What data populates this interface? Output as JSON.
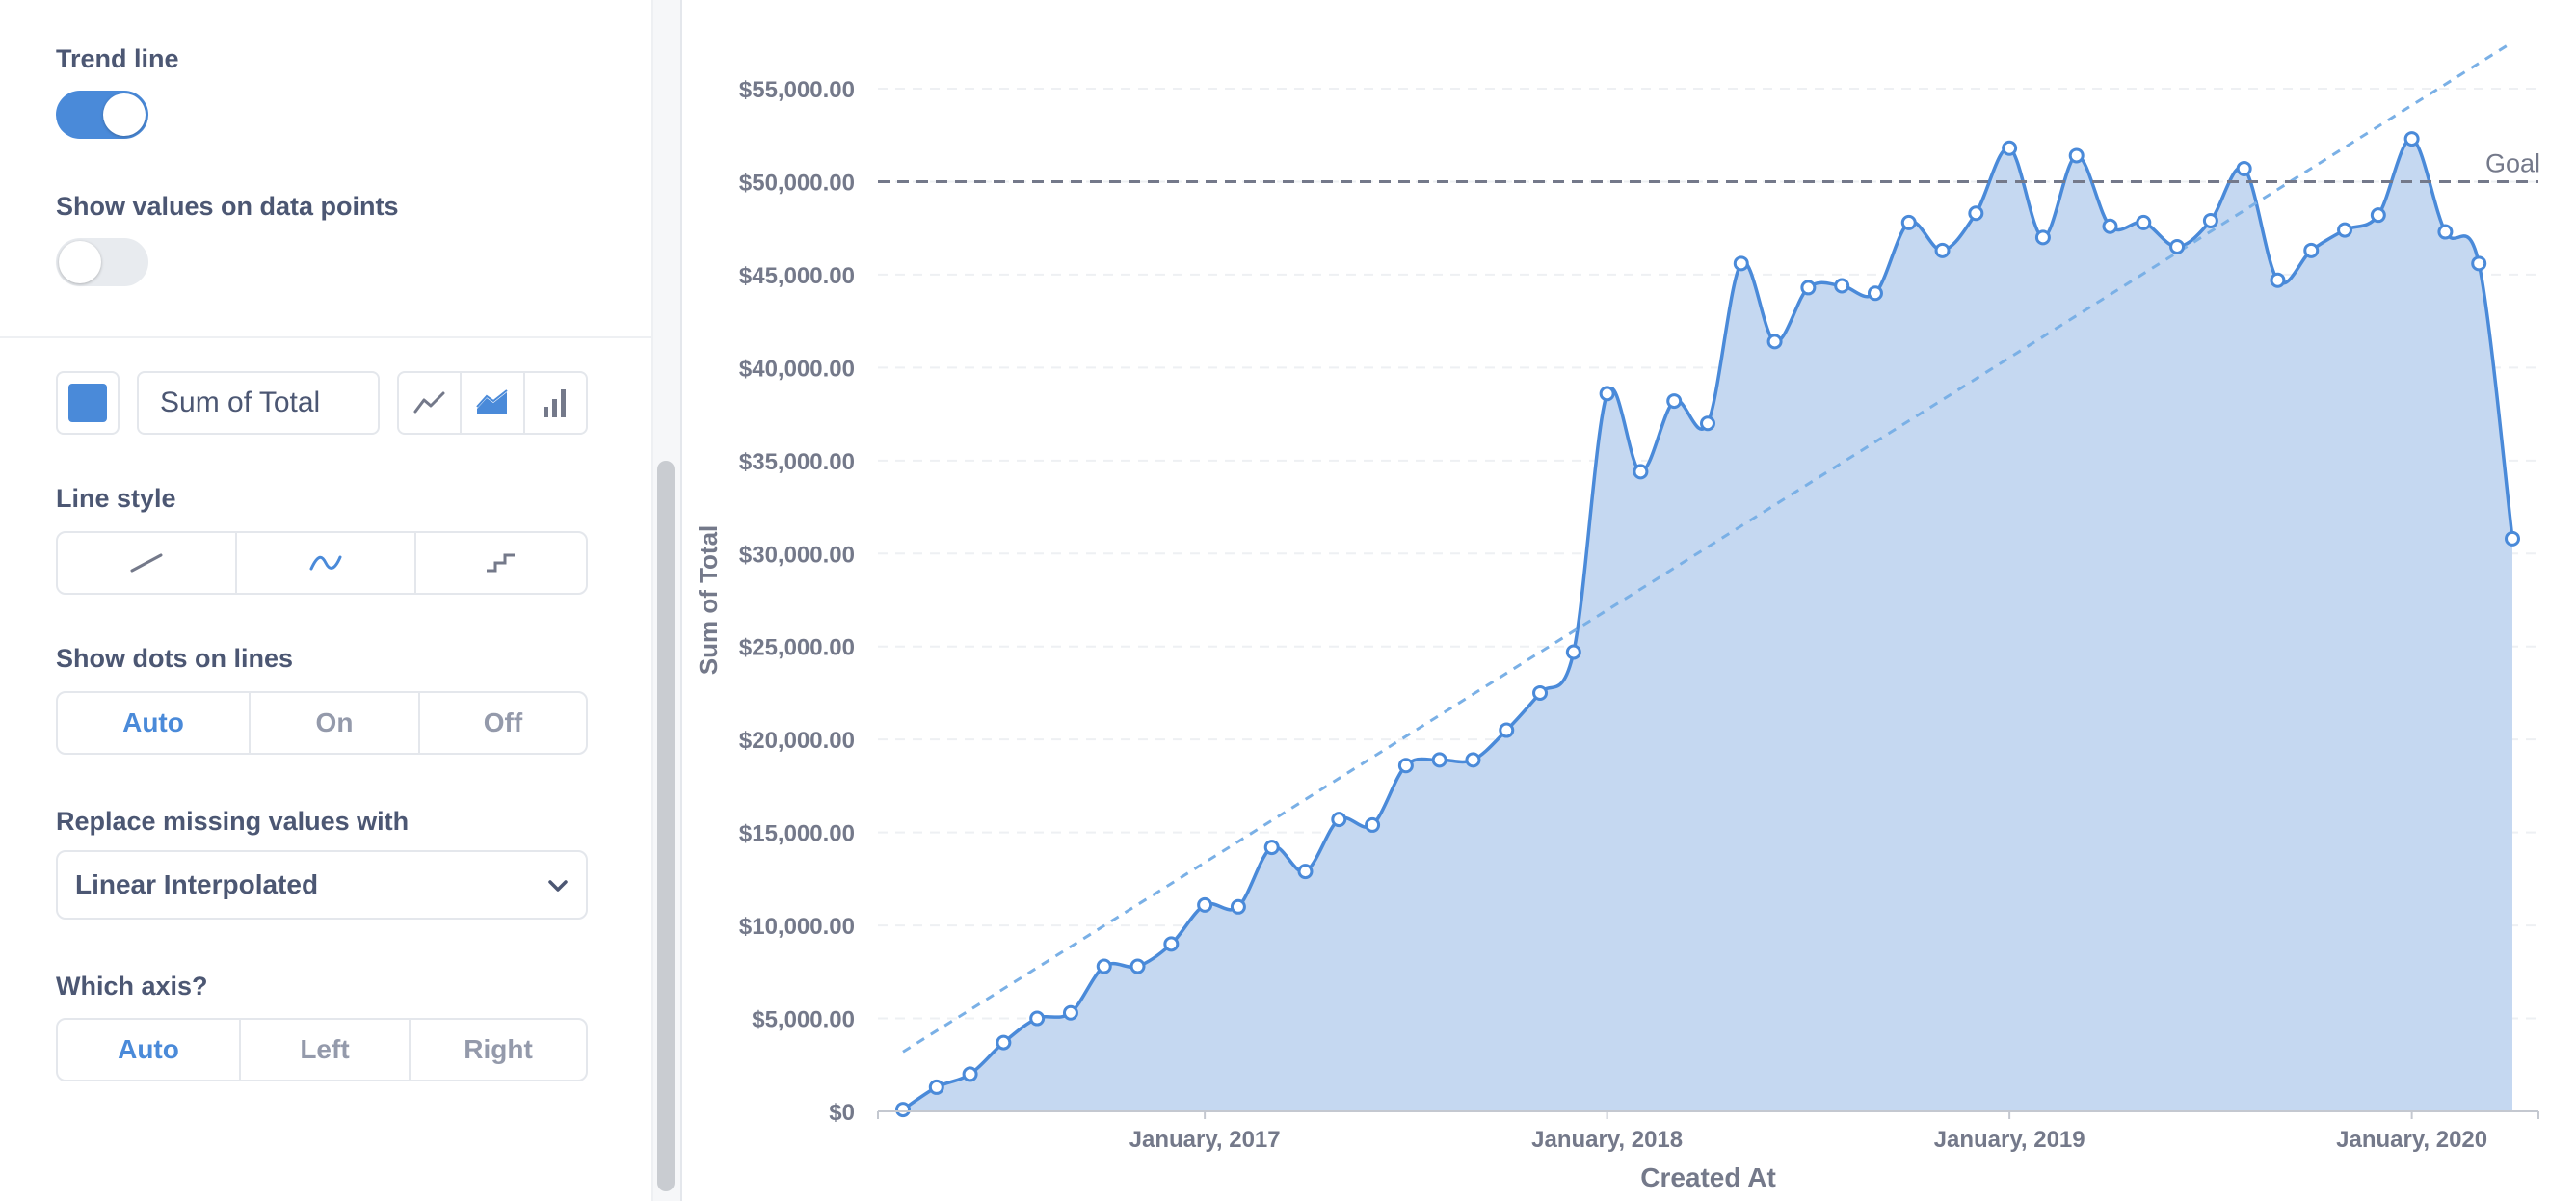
{
  "sidebar": {
    "trend_line": {
      "label": "Trend line",
      "enabled": true
    },
    "show_values": {
      "label": "Show values on data points",
      "enabled": false
    },
    "series": {
      "color": "#4a8ad9",
      "name": "Sum of Total",
      "chart_type_icons": [
        "line-chart-icon",
        "area-chart-icon",
        "bar-chart-icon"
      ],
      "selected_chart_type": "area"
    },
    "line_style": {
      "label": "Line style",
      "options": [
        "linear-line-icon",
        "curved-line-icon",
        "step-line-icon"
      ],
      "selected": "curved"
    },
    "show_dots": {
      "label": "Show dots on lines",
      "options": [
        "Auto",
        "On",
        "Off"
      ],
      "selected": "Auto"
    },
    "missing_values": {
      "label": "Replace missing values with",
      "value": "Linear Interpolated"
    },
    "axis": {
      "label": "Which axis?",
      "options": [
        "Auto",
        "Left",
        "Right"
      ],
      "selected": "Auto"
    }
  },
  "colors": {
    "accent": "#4a8ad9",
    "area_fill": "#c5d8f1",
    "trend": "#7ab0e6",
    "goal": "#74798a"
  },
  "chart_data": {
    "type": "area",
    "xlabel": "Created At",
    "ylabel": "Sum of Total",
    "x_tick_labels": [
      "January, 2017",
      "January, 2018",
      "January, 2019",
      "January, 2020"
    ],
    "y_tick_labels": [
      "$0",
      "$5,000.00",
      "$10,000.00",
      "$15,000.00",
      "$20,000.00",
      "$25,000.00",
      "$30,000.00",
      "$35,000.00",
      "$40,000.00",
      "$45,000.00",
      "$50,000.00",
      "$55,000.00"
    ],
    "ylim": [
      0,
      55000
    ],
    "x_range": [
      "2016-04",
      "2020-04"
    ],
    "grid": true,
    "goal": {
      "label": "Goal",
      "value": 50000
    },
    "trend_line": {
      "start": [
        "2016-04",
        3200
      ],
      "end": [
        "2020-04",
        57500
      ]
    },
    "series": [
      {
        "name": "Sum of Total",
        "x": [
          "2016-04",
          "2016-05",
          "2016-06",
          "2016-07",
          "2016-08",
          "2016-09",
          "2016-10",
          "2016-11",
          "2016-12",
          "2017-01",
          "2017-02",
          "2017-03",
          "2017-04",
          "2017-05",
          "2017-06",
          "2017-07",
          "2017-08",
          "2017-09",
          "2017-10",
          "2017-11",
          "2017-12",
          "2018-01",
          "2018-02",
          "2018-03",
          "2018-04",
          "2018-05",
          "2018-06",
          "2018-07",
          "2018-08",
          "2018-09",
          "2018-10",
          "2018-11",
          "2018-12",
          "2019-01",
          "2019-02",
          "2019-03",
          "2019-04",
          "2019-05",
          "2019-06",
          "2019-07",
          "2019-08",
          "2019-09",
          "2019-10",
          "2019-11",
          "2019-12",
          "2020-01",
          "2020-02",
          "2020-03",
          "2020-04"
        ],
        "values": [
          100,
          1300,
          2000,
          3700,
          5000,
          5300,
          7800,
          7800,
          9000,
          11100,
          11000,
          14200,
          12900,
          15700,
          15400,
          18600,
          18900,
          18900,
          20500,
          22500,
          24700,
          38600,
          34400,
          38200,
          37000,
          45600,
          41400,
          44300,
          44400,
          44000,
          47800,
          46300,
          48300,
          51800,
          47000,
          51400,
          47600,
          47800,
          46500,
          47900,
          50700,
          44700,
          46300,
          47400,
          48200,
          52300,
          47300,
          45600,
          30800
        ]
      }
    ]
  }
}
